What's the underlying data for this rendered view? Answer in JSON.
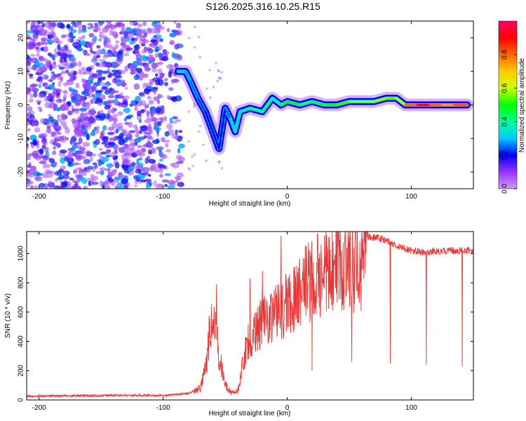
{
  "title": "S126.2025.316.10.25.R15",
  "chart_data": [
    {
      "type": "heatmap",
      "xlabel": "Height of straight line (km)",
      "ylabel": "Frequency (Hz)",
      "xlim": [
        -210,
        150
      ],
      "ylim": [
        -25,
        25
      ],
      "xticks": [
        -200,
        -100,
        0,
        100
      ],
      "yticks": [
        -20,
        -10,
        0,
        10,
        20
      ],
      "colorbar": {
        "label": "Normalized spectral amplitude",
        "range": [
          0,
          1
        ],
        "ticks": [
          0.0,
          0.2,
          0.4,
          0.6,
          0.8
        ],
        "colors": [
          "#cc99ff",
          "#9933ff",
          "#0000ff",
          "#00ccff",
          "#00ff99",
          "#00ff00",
          "#ccff00",
          "#ffcc00",
          "#ff6600",
          "#ff0000",
          "#ff0066"
        ]
      },
      "noise_region": {
        "x": [
          -210,
          -85
        ],
        "y": [
          -25,
          25
        ],
        "amplitude": [
          0.05,
          0.3
        ]
      },
      "signal_track": [
        {
          "x": -88,
          "y": 10,
          "amp": 0.3
        },
        {
          "x": -82,
          "y": 10,
          "amp": 0.3
        },
        {
          "x": -78,
          "y": 7,
          "amp": 0.25
        },
        {
          "x": -72,
          "y": 2,
          "amp": 0.25
        },
        {
          "x": -66,
          "y": -2,
          "amp": 0.2
        },
        {
          "x": -60,
          "y": -8,
          "amp": 0.2
        },
        {
          "x": -55,
          "y": -13,
          "amp": 0.2
        },
        {
          "x": -50,
          "y": -1,
          "amp": 0.2
        },
        {
          "x": -46,
          "y": -4,
          "amp": 0.3
        },
        {
          "x": -42,
          "y": -8,
          "amp": 0.3
        },
        {
          "x": -38,
          "y": -2,
          "amp": 0.35
        },
        {
          "x": -30,
          "y": -1,
          "amp": 0.35
        },
        {
          "x": -20,
          "y": -2,
          "amp": 0.45
        },
        {
          "x": -12,
          "y": 2,
          "amp": 0.4
        },
        {
          "x": -5,
          "y": 0,
          "amp": 0.35
        },
        {
          "x": 0,
          "y": 1,
          "amp": 0.6
        },
        {
          "x": 10,
          "y": 0,
          "amp": 0.4
        },
        {
          "x": 20,
          "y": 1,
          "amp": 0.45
        },
        {
          "x": 30,
          "y": 0,
          "amp": 0.45
        },
        {
          "x": 40,
          "y": 0,
          "amp": 0.5
        },
        {
          "x": 50,
          "y": 1,
          "amp": 0.55
        },
        {
          "x": 60,
          "y": 1,
          "amp": 0.6
        },
        {
          "x": 70,
          "y": 1,
          "amp": 0.55
        },
        {
          "x": 80,
          "y": 2,
          "amp": 0.6
        },
        {
          "x": 88,
          "y": 2,
          "amp": 0.5
        },
        {
          "x": 95,
          "y": 0,
          "amp": 0.7
        },
        {
          "x": 105,
          "y": 0,
          "amp": 0.9
        },
        {
          "x": 115,
          "y": 0,
          "amp": 0.9
        },
        {
          "x": 125,
          "y": 0,
          "amp": 0.7
        },
        {
          "x": 135,
          "y": 0,
          "amp": 0.8
        },
        {
          "x": 145,
          "y": 0,
          "amp": 0.85
        }
      ]
    },
    {
      "type": "line",
      "xlabel": "Height of straight line (km)",
      "ylabel": "SNR (10 * v/v)",
      "xlim": [
        -210,
        150
      ],
      "ylim": [
        0,
        1150
      ],
      "xticks": [
        -200,
        -100,
        0,
        100
      ],
      "yticks": [
        0,
        200,
        400,
        600,
        800,
        1000
      ],
      "color": "#ee3333",
      "series": [
        {
          "name": "SNR",
          "x": [
            -210,
            -180,
            -150,
            -120,
            -100,
            -80,
            -70,
            -65,
            -62,
            -60,
            -58,
            -55,
            -50,
            -45,
            -40,
            -35,
            -32,
            -30,
            -25,
            -20,
            -15,
            -10,
            -5,
            0,
            5,
            10,
            15,
            20,
            25,
            30,
            40,
            50,
            60,
            63,
            66,
            70,
            75,
            80,
            85,
            90,
            95,
            100,
            110,
            120,
            130,
            140,
            150
          ],
          "y": [
            25,
            28,
            30,
            32,
            30,
            45,
            80,
            250,
            520,
            620,
            480,
            300,
            100,
            50,
            60,
            280,
            420,
            360,
            480,
            560,
            580,
            600,
            620,
            650,
            700,
            740,
            790,
            810,
            850,
            880,
            900,
            910,
            920,
            880,
            1110,
            1110,
            1100,
            1090,
            1060,
            1050,
            1030,
            1020,
            1010,
            1015,
            1020,
            1020,
            1020
          ]
        }
      ],
      "spikes": [
        {
          "x": -57,
          "y": 790
        },
        {
          "x": -30,
          "y": 830
        },
        {
          "x": -20,
          "y": 880
        },
        {
          "x": -5,
          "y": 1120
        },
        {
          "x": 20,
          "y": 200
        },
        {
          "x": 52,
          "y": 260
        },
        {
          "x": 83,
          "y": 250
        },
        {
          "x": 112,
          "y": 240
        },
        {
          "x": 141,
          "y": 230
        }
      ]
    }
  ]
}
